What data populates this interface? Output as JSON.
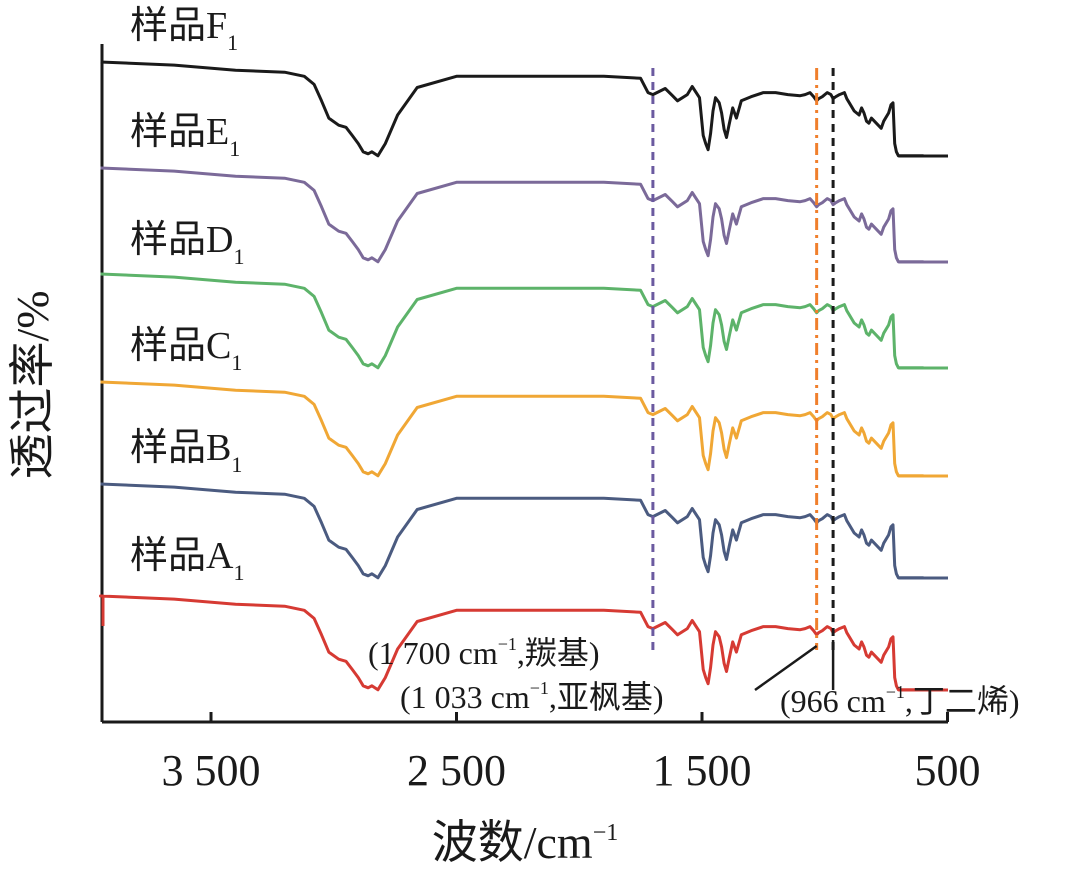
{
  "chart_data": {
    "type": "line",
    "subtype": "FTIR spectra, vertically offset",
    "xlabel": "波数/cm",
    "xlabel_sup": "−1",
    "ylabel": "透过率/%",
    "xlim": [
      3950,
      500
    ],
    "x_reversed": true,
    "xticks": [
      3500,
      2500,
      1500,
      500
    ],
    "xtick_labels": [
      "3 500",
      "2 500",
      "1 500",
      "500"
    ],
    "grid": false,
    "legend": "none (series labelled inline, top-left of each trace)",
    "series": [
      {
        "name": "样品F",
        "sub": "1",
        "color": "#1a1a1a"
      },
      {
        "name": "样品E",
        "sub": "1",
        "color": "#7b6a99"
      },
      {
        "name": "样品D",
        "sub": "1",
        "color": "#5db36a"
      },
      {
        "name": "样品C",
        "sub": "1",
        "color": "#f0a735"
      },
      {
        "name": "样品B",
        "sub": "1",
        "color": "#4b5b80"
      },
      {
        "name": "样品A",
        "sub": "1",
        "color": "#d63a33"
      }
    ],
    "spectrum_profile": {
      "x": [
        3950,
        3650,
        3400,
        3200,
        3120,
        3080,
        3050,
        3020,
        2980,
        2950,
        2925,
        2900,
        2880,
        2860,
        2845,
        2820,
        2790,
        2740,
        2660,
        2500,
        2200,
        1900,
        1750,
        1720,
        1700,
        1650,
        1620,
        1600,
        1560,
        1540,
        1510,
        1495,
        1485,
        1475,
        1465,
        1455,
        1445,
        1430,
        1420,
        1410,
        1400,
        1390,
        1375,
        1360,
        1340,
        1300,
        1250,
        1200,
        1150,
        1100,
        1080,
        1060,
        1045,
        1033,
        1025,
        1010,
        990,
        975,
        966,
        955,
        940,
        920,
        910,
        900,
        880,
        860,
        850,
        840,
        830,
        820,
        810,
        790,
        770,
        760,
        740,
        730,
        722,
        715,
        708,
        700,
        698,
        650,
        600
      ],
      "y": [
        0,
        3,
        8,
        10,
        14,
        22,
        38,
        55,
        62,
        64,
        72,
        80,
        88,
        90,
        88,
        92,
        80,
        52,
        25,
        14,
        14,
        14,
        16,
        30,
        32,
        26,
        33,
        38,
        32,
        24,
        35,
        72,
        80,
        86,
        70,
        48,
        35,
        40,
        50,
        66,
        74,
        62,
        45,
        55,
        38,
        34,
        30,
        30,
        32,
        33,
        32,
        30,
        34,
        38,
        36,
        34,
        30,
        32,
        36,
        34,
        32,
        30,
        36,
        40,
        48,
        52,
        45,
        50,
        58,
        60,
        55,
        60,
        65,
        58,
        50,
        42,
        40,
        80,
        88,
        92,
        92,
        92,
        92
      ]
    },
    "annotations": [
      {
        "text": "(1 700 cm",
        "sup": "−1",
        "tail": ",羰基)",
        "x": 1700,
        "line": "dashed",
        "color": "#6b5aa0"
      },
      {
        "text": "(1 033 cm",
        "sup": "−1",
        "tail": ",亚枫基)",
        "x": 1033,
        "line": "dash-dot",
        "color": "#f07f2c"
      },
      {
        "text": "(966 cm",
        "sup": "−1",
        "tail": ",丁二烯)",
        "x": 966,
        "line": "dashed",
        "color": "#1a1a1a"
      }
    ]
  }
}
